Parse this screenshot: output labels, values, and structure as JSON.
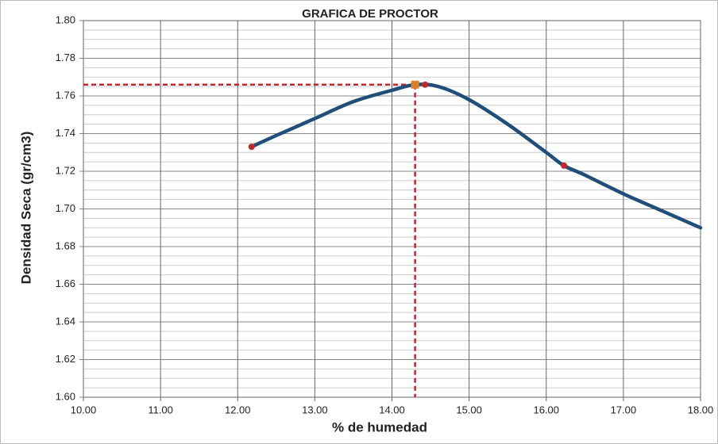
{
  "chart_data": {
    "type": "line",
    "title": "GRAFICA DE PROCTOR",
    "x_label": "% de humedad",
    "y_label": "Densidad Seca (gr/cm3)",
    "xlim": [
      10,
      18
    ],
    "ylim": [
      1.6,
      1.8
    ],
    "xticks": [
      {
        "value": 10,
        "label": "10.00"
      },
      {
        "value": 11,
        "label": "11.00"
      },
      {
        "value": 12,
        "label": "12.00"
      },
      {
        "value": 13,
        "label": "13.00"
      },
      {
        "value": 14,
        "label": "14.00"
      },
      {
        "value": 15,
        "label": "15.00"
      },
      {
        "value": 16,
        "label": "16.00"
      },
      {
        "value": 17,
        "label": "17.00"
      },
      {
        "value": 18,
        "label": "18.00"
      }
    ],
    "yticks": [
      {
        "value": 1.6,
        "label": "1.60"
      },
      {
        "value": 1.62,
        "label": "1.62"
      },
      {
        "value": 1.64,
        "label": "1.64"
      },
      {
        "value": 1.66,
        "label": "1.66"
      },
      {
        "value": 1.68,
        "label": "1.68"
      },
      {
        "value": 1.7,
        "label": "1.70"
      },
      {
        "value": 1.72,
        "label": "1.72"
      },
      {
        "value": 1.74,
        "label": "1.74"
      },
      {
        "value": 1.76,
        "label": "1.76"
      },
      {
        "value": 1.78,
        "label": "1.78"
      },
      {
        "value": 1.8,
        "label": "1.80"
      }
    ],
    "y_minor_grid_step": 0.005,
    "grid": true,
    "curve": {
      "color": "#1f4e79",
      "x": [
        12.18,
        12.5,
        13.0,
        13.5,
        14.0,
        14.3,
        14.6,
        15.0,
        15.5,
        16.0,
        16.23,
        16.5,
        17.0,
        17.5,
        18.0
      ],
      "values": [
        1.733,
        1.739,
        1.748,
        1.757,
        1.763,
        1.766,
        1.765,
        1.758,
        1.745,
        1.73,
        1.723,
        1.718,
        1.708,
        1.699,
        1.69
      ]
    },
    "points": {
      "color": "#c0282d",
      "x": [
        12.18,
        14.43,
        16.23
      ],
      "values": [
        1.733,
        1.766,
        1.723
      ]
    },
    "optimum": {
      "color": "#d9822b",
      "line_color": "#d0202a",
      "x": 14.3,
      "y": 1.766
    }
  }
}
